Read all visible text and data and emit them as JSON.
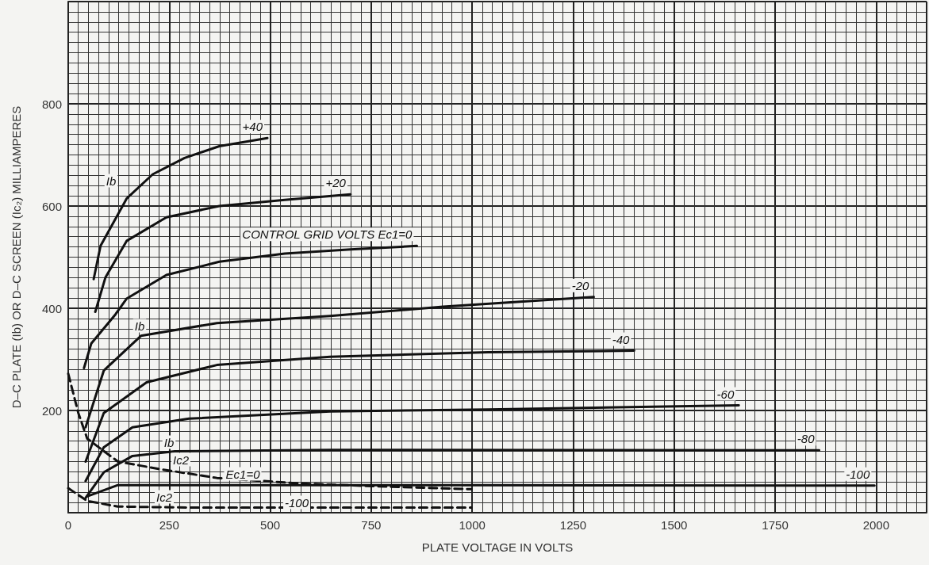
{
  "chart_data": {
    "type": "line",
    "xlabel": "PLATE VOLTAGE IN VOLTS",
    "ylabel": "D–C PLATE (Ib) OR D–C SCREEN (Ic₂) MILLIAMPERES",
    "xlim": [
      0,
      2125
    ],
    "xticks": [
      0,
      250,
      500,
      750,
      1000,
      1250,
      1500,
      1750,
      2000
    ],
    "ylim": [
      0,
      1000
    ],
    "yticks": [
      {
        "value": 0,
        "label": null
      },
      200,
      400,
      600,
      800,
      {
        "value": 1000,
        "label": null
      }
    ],
    "grid": true,
    "marker": "none",
    "line_style": "solid",
    "legend": false,
    "series": [
      {
        "name": "+40",
        "color": "#111111",
        "x": [
          63,
          80,
          145,
          209,
          288,
          374,
          493
        ],
        "values": [
          457,
          522,
          615,
          662,
          694,
          717,
          733
        ]
      },
      {
        "name": "+20",
        "color": "#111111",
        "x": [
          67,
          92,
          145,
          243,
          374,
          536,
          699
        ],
        "values": [
          393,
          460,
          532,
          578,
          600,
          612,
          623
        ]
      },
      {
        "name": "CONTROL GRID VOLTS Ec1=0",
        "color": "#111111",
        "x": [
          39,
          57,
          117,
          145,
          243,
          374,
          536,
          699,
          863
        ],
        "values": [
          283,
          331,
          388,
          419,
          465,
          491,
          507,
          515,
          522
        ]
      },
      {
        "name": "-20",
        "color": "#111111",
        "x": [
          43,
          88,
          180,
          368,
          648,
          928,
          1301
        ],
        "values": [
          167,
          278,
          346,
          371,
          385,
          403,
          422
        ]
      },
      {
        "name": "-40",
        "color": "#111111",
        "x": [
          43,
          88,
          194,
          368,
          648,
          1039,
          1401
        ],
        "values": [
          100,
          195,
          255,
          289,
          305,
          314,
          317
        ]
      },
      {
        "name": "-60",
        "color": "#111111",
        "x": [
          43,
          88,
          159,
          299,
          648,
          1039,
          1660
        ],
        "values": [
          62,
          128,
          167,
          184,
          198,
          202,
          210
        ]
      },
      {
        "name": "-80",
        "color": "#111111",
        "x": [
          43,
          88,
          159,
          264,
          648,
          1859
        ],
        "values": [
          29,
          79,
          111,
          120,
          123,
          122
        ]
      },
      {
        "name": "-100",
        "color": "#111111",
        "x": [
          47,
          123,
          299,
          1000,
          1996
        ],
        "values": [
          32,
          54,
          54,
          54,
          53
        ]
      },
      {
        "color": "#111111",
        "line_style": "dashed",
        "x": [
          0,
          25,
          47,
          123,
          229,
          368,
          577,
          789,
          998
        ],
        "values": [
          272,
          195,
          145,
          100,
          85,
          68,
          57,
          51,
          46
        ]
      },
      {
        "color": "#111111",
        "line_style": "dashed",
        "x": [
          0,
          47,
          123,
          299,
          998
        ],
        "values": [
          48,
          23,
          12,
          10,
          10
        ]
      }
    ],
    "annotations": [
      "Ib",
      "Ib",
      "Ib",
      "Ic2",
      "Ec1=0",
      "Ic2",
      "-100"
    ]
  }
}
